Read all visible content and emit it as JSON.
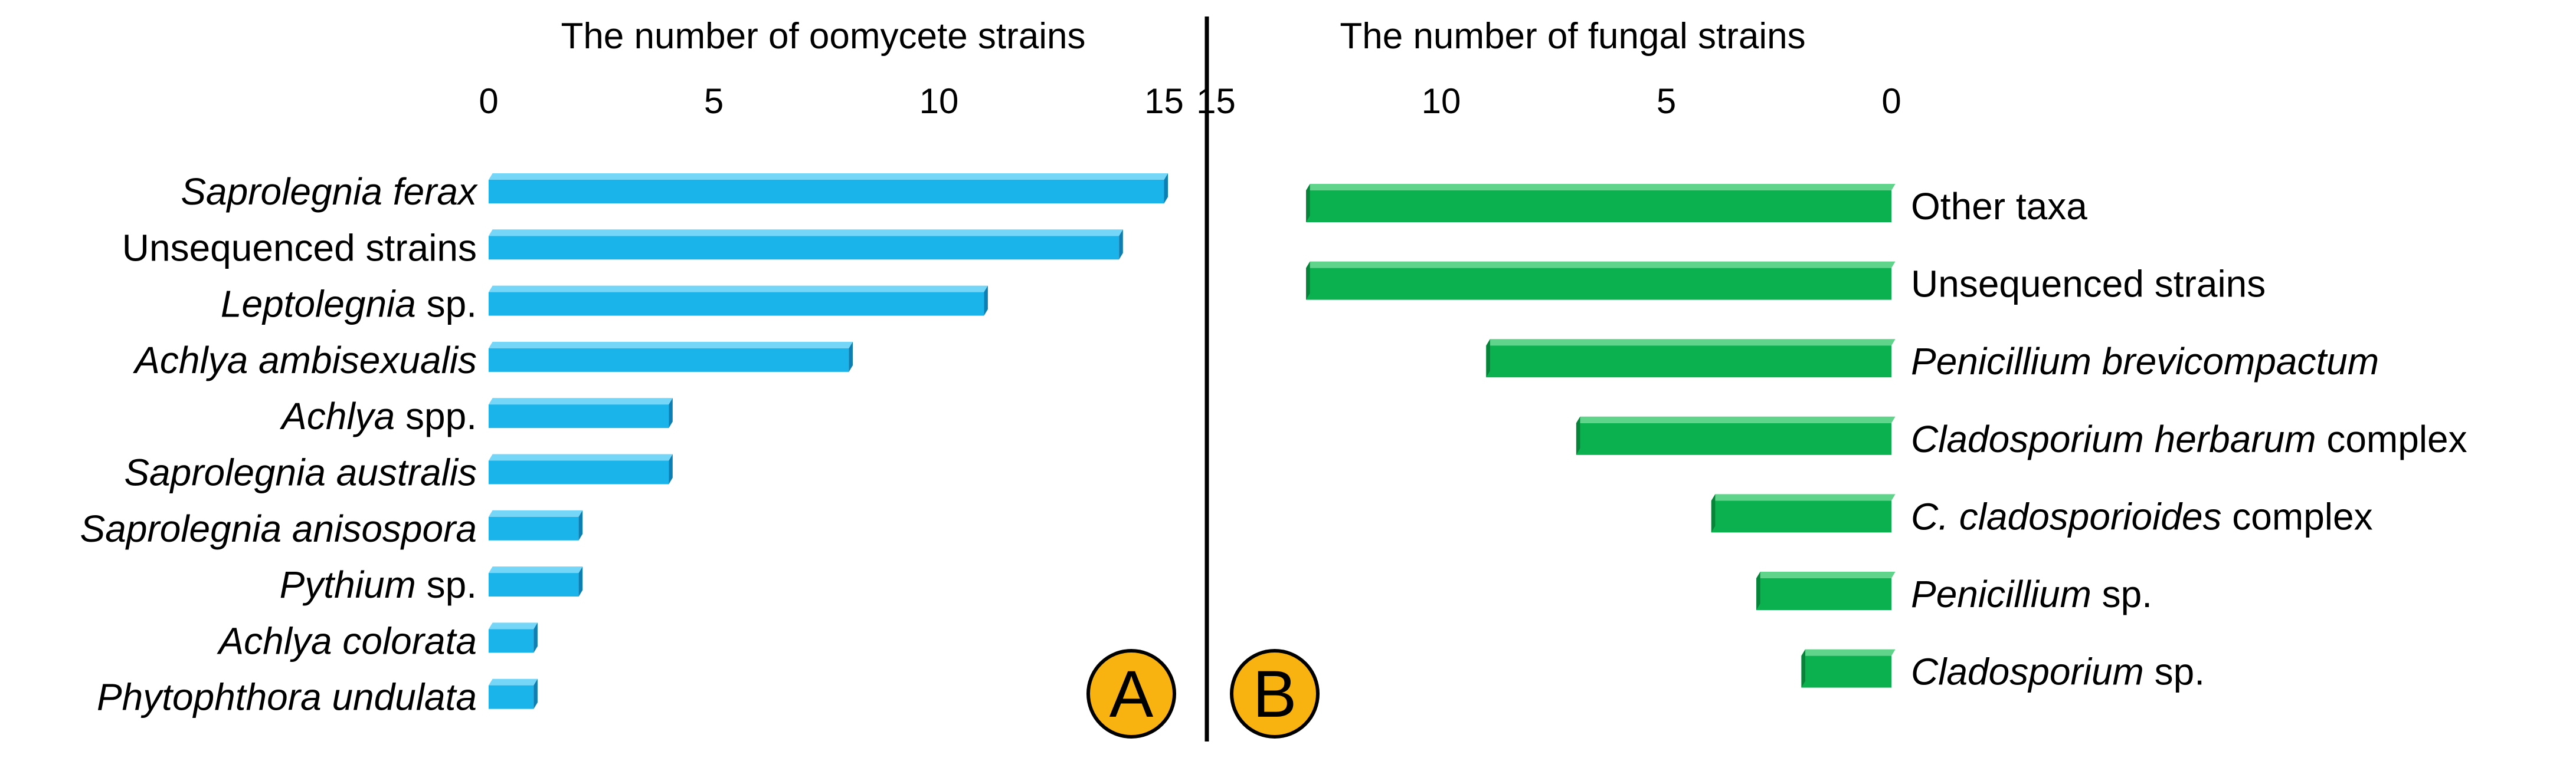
{
  "chart_data": [
    {
      "type": "bar",
      "orientation": "horizontal",
      "panel_label": "A",
      "xlabel": "The number of oomycete strains",
      "xlim": [
        0,
        15
      ],
      "xticks": [
        "0",
        "5",
        "10",
        "15"
      ],
      "categories": [
        {
          "name": "Saprolegnia ferax",
          "parts": [
            {
              "text": "Saprolegnia ferax",
              "italic": true
            }
          ]
        },
        {
          "name": "Unsequenced strains",
          "parts": [
            {
              "text": "Unsequenced strains",
              "italic": false
            }
          ]
        },
        {
          "name": "Leptolegnia sp.",
          "parts": [
            {
              "text": "Leptolegnia",
              "italic": true
            },
            {
              "text": " sp.",
              "italic": false
            }
          ]
        },
        {
          "name": "Achlya ambisexualis",
          "parts": [
            {
              "text": "Achlya ambisexualis",
              "italic": true
            }
          ]
        },
        {
          "name": "Achlya spp.",
          "parts": [
            {
              "text": "Achlya",
              "italic": true
            },
            {
              "text": " spp.",
              "italic": false
            }
          ]
        },
        {
          "name": "Saprolegnia australis",
          "parts": [
            {
              "text": "Saprolegnia australis",
              "italic": true
            }
          ]
        },
        {
          "name": "Saprolegnia anisospora",
          "parts": [
            {
              "text": "Saprolegnia anisospora",
              "italic": true
            }
          ]
        },
        {
          "name": "Pythium sp.",
          "parts": [
            {
              "text": "Pythium",
              "italic": true
            },
            {
              "text": " sp.",
              "italic": false
            }
          ]
        },
        {
          "name": "Achlya colorata",
          "parts": [
            {
              "text": "Achlya colorata",
              "italic": true
            }
          ]
        },
        {
          "name": "Phytophthora undulata",
          "parts": [
            {
              "text": "Phytophthora undulata",
              "italic": true
            }
          ]
        }
      ],
      "values": [
        15,
        14,
        11,
        8,
        4,
        4,
        2,
        2,
        1,
        1
      ],
      "color": "#1ab4ea",
      "color_dark": "#0d7fb3",
      "color_top": "#76d6f7"
    },
    {
      "type": "bar",
      "orientation": "horizontal",
      "direction": "reversed",
      "panel_label": "B",
      "xlabel": "The number of fungal strains",
      "xlim": [
        0,
        15
      ],
      "xticks": [
        "15",
        "10",
        "5",
        "0"
      ],
      "categories": [
        {
          "name": "Other taxa",
          "parts": [
            {
              "text": "Other taxa",
              "italic": false
            }
          ]
        },
        {
          "name": "Unsequenced strains",
          "parts": [
            {
              "text": "Unsequenced strains",
              "italic": false
            }
          ]
        },
        {
          "name": "Penicillium brevicompactum",
          "parts": [
            {
              "text": "Penicillium brevicompactum",
              "italic": true
            }
          ]
        },
        {
          "name": "Cladosporium herbarum complex",
          "parts": [
            {
              "text": "Cladosporium herbarum",
              "italic": true
            },
            {
              "text": " complex",
              "italic": false
            }
          ]
        },
        {
          "name": "C. cladosporioides complex",
          "parts": [
            {
              "text": "C. cladosporioides",
              "italic": true
            },
            {
              "text": " complex",
              "italic": false
            }
          ]
        },
        {
          "name": "Penicillium sp.",
          "parts": [
            {
              "text": "Penicillium",
              "italic": true
            },
            {
              "text": " sp.",
              "italic": false
            }
          ]
        },
        {
          "name": "Cladosporium sp.",
          "parts": [
            {
              "text": "Cladosporium",
              "italic": true
            },
            {
              "text": " sp.",
              "italic": false
            }
          ]
        }
      ],
      "values": [
        13,
        13,
        9,
        7,
        4,
        3,
        2
      ],
      "color": "#0bb14f",
      "color_dark": "#08843a",
      "color_top": "#5fd48a"
    }
  ],
  "badge_color": "#f9b310",
  "badge_stroke": "#000000",
  "divider_color": "#000000"
}
